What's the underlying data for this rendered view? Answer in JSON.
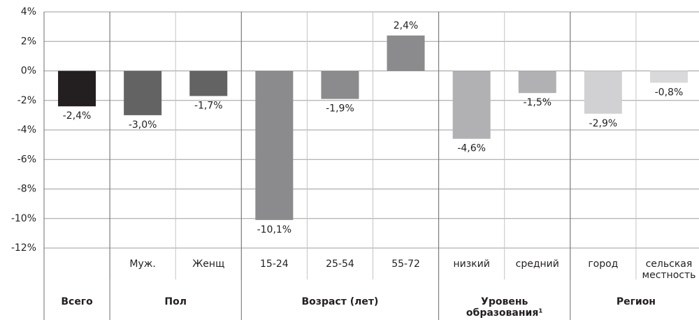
{
  "chart_data": {
    "type": "bar",
    "categories": [
      null,
      "Муж.",
      "Женщ",
      "15-24",
      "25-54",
      "55-72",
      "низкий",
      "средний",
      "город",
      "сельская местность"
    ],
    "values": [
      -2.4,
      -3.0,
      -1.7,
      -10.1,
      -1.9,
      2.4,
      -4.6,
      -1.5,
      -2.9,
      -0.8
    ],
    "value_labels": [
      "-2,4%",
      "-3,0%",
      "-1,7%",
      "-10,1%",
      "-1,9%",
      "2,4%",
      "-4,6%",
      "-1,5%",
      "-2,9%",
      "-0,8%"
    ],
    "colors": [
      "#231f20",
      "#636363",
      "#636363",
      "#8b8b8d",
      "#8b8b8d",
      "#8b8b8d",
      "#b1b1b3",
      "#b1b1b3",
      "#d1d1d3",
      "#d9d9db"
    ],
    "groups": [
      {
        "label": "Всего",
        "size": 1
      },
      {
        "label": "Пол",
        "size": 2
      },
      {
        "label": "Возраст (лет)",
        "size": 3
      },
      {
        "label": "Уровень образования¹",
        "size": 2
      },
      {
        "label": "Регион",
        "size": 2
      }
    ],
    "ylim": [
      -12,
      4
    ],
    "yticks": [
      {
        "value": 4,
        "label": "4%"
      },
      {
        "value": 2,
        "label": "2%"
      },
      {
        "value": 0,
        "label": "0%"
      },
      {
        "value": -2,
        "label": "-2%"
      },
      {
        "value": -4,
        "label": "-4%"
      },
      {
        "value": -6,
        "label": "-6%"
      },
      {
        "value": -8,
        "label": "-8%"
      },
      {
        "value": -10,
        "label": "-10%"
      },
      {
        "value": -12,
        "label": "-12%"
      }
    ],
    "grid": true
  }
}
